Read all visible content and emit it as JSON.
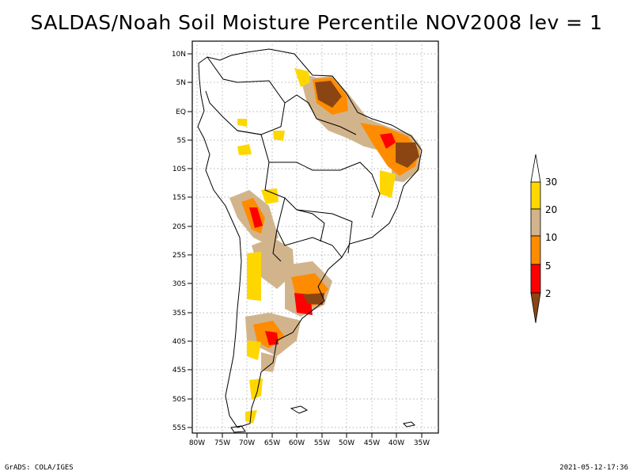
{
  "title": "SALDAS/Noah Soil Moisture Percentile NOV2008 lev = 1",
  "footer": {
    "left": "GrADS: COLA/IGES",
    "right": "2021-05-12-17:36"
  },
  "map": {
    "lat_ticks": [
      "10N",
      "5N",
      "EQ",
      "5S",
      "10S",
      "15S",
      "20S",
      "25S",
      "30S",
      "35S",
      "40S",
      "45S",
      "50S",
      "55S"
    ],
    "lon_ticks": [
      "80W",
      "75W",
      "70W",
      "65W",
      "60W",
      "55W",
      "50W",
      "45W",
      "40W",
      "35W"
    ],
    "lat_range": [
      -56,
      11
    ],
    "lon_range": [
      -81,
      -32
    ],
    "grid": "dotted"
  },
  "colorbar": {
    "labels": [
      "30",
      "20",
      "10",
      "5",
      "2"
    ],
    "colors": [
      "#ffffff",
      "#ffd700",
      "#d2b48c",
      "#ff8c00",
      "#ff0000",
      "#8b4513"
    ]
  },
  "icons": {
    "colorbar_top": "arrow-up-triangle",
    "colorbar_bottom": "arrow-down-triangle"
  }
}
